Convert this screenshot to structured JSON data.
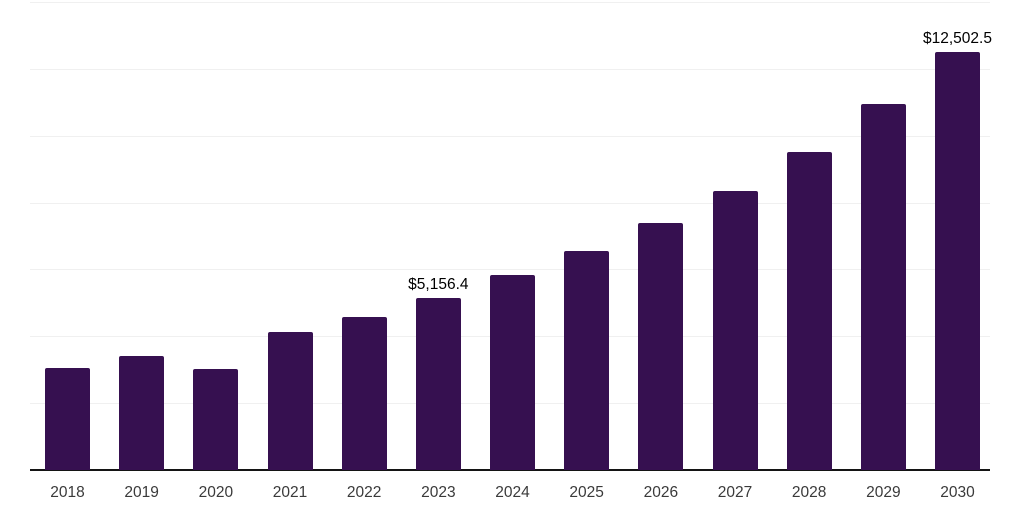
{
  "chart_data": {
    "type": "bar",
    "title": "",
    "xlabel": "",
    "ylabel": "",
    "categories": [
      "2018",
      "2019",
      "2020",
      "2021",
      "2022",
      "2023",
      "2024",
      "2025",
      "2026",
      "2027",
      "2028",
      "2029",
      "2030"
    ],
    "values": [
      3050,
      3410,
      3020,
      4130,
      4580,
      5156.4,
      5830,
      6540,
      7390,
      8360,
      9510,
      10950,
      12502.5
    ],
    "annotations": [
      {
        "category": "2023",
        "text": "$5,156.4"
      },
      {
        "category": "2030",
        "text": "$12,502.5"
      }
    ],
    "ylim": [
      0,
      14000
    ],
    "gridline_step": 2000,
    "grid": "horizontal-only",
    "y_axis_labels_visible": false,
    "legend": "none",
    "bar_color": "#361050",
    "gridline_color": "#f0f0f0",
    "axis_line_color": "#141414",
    "tick_label_color": "#3a3a3a",
    "data_label_color": "#000000",
    "background_color": "#ffffff"
  }
}
